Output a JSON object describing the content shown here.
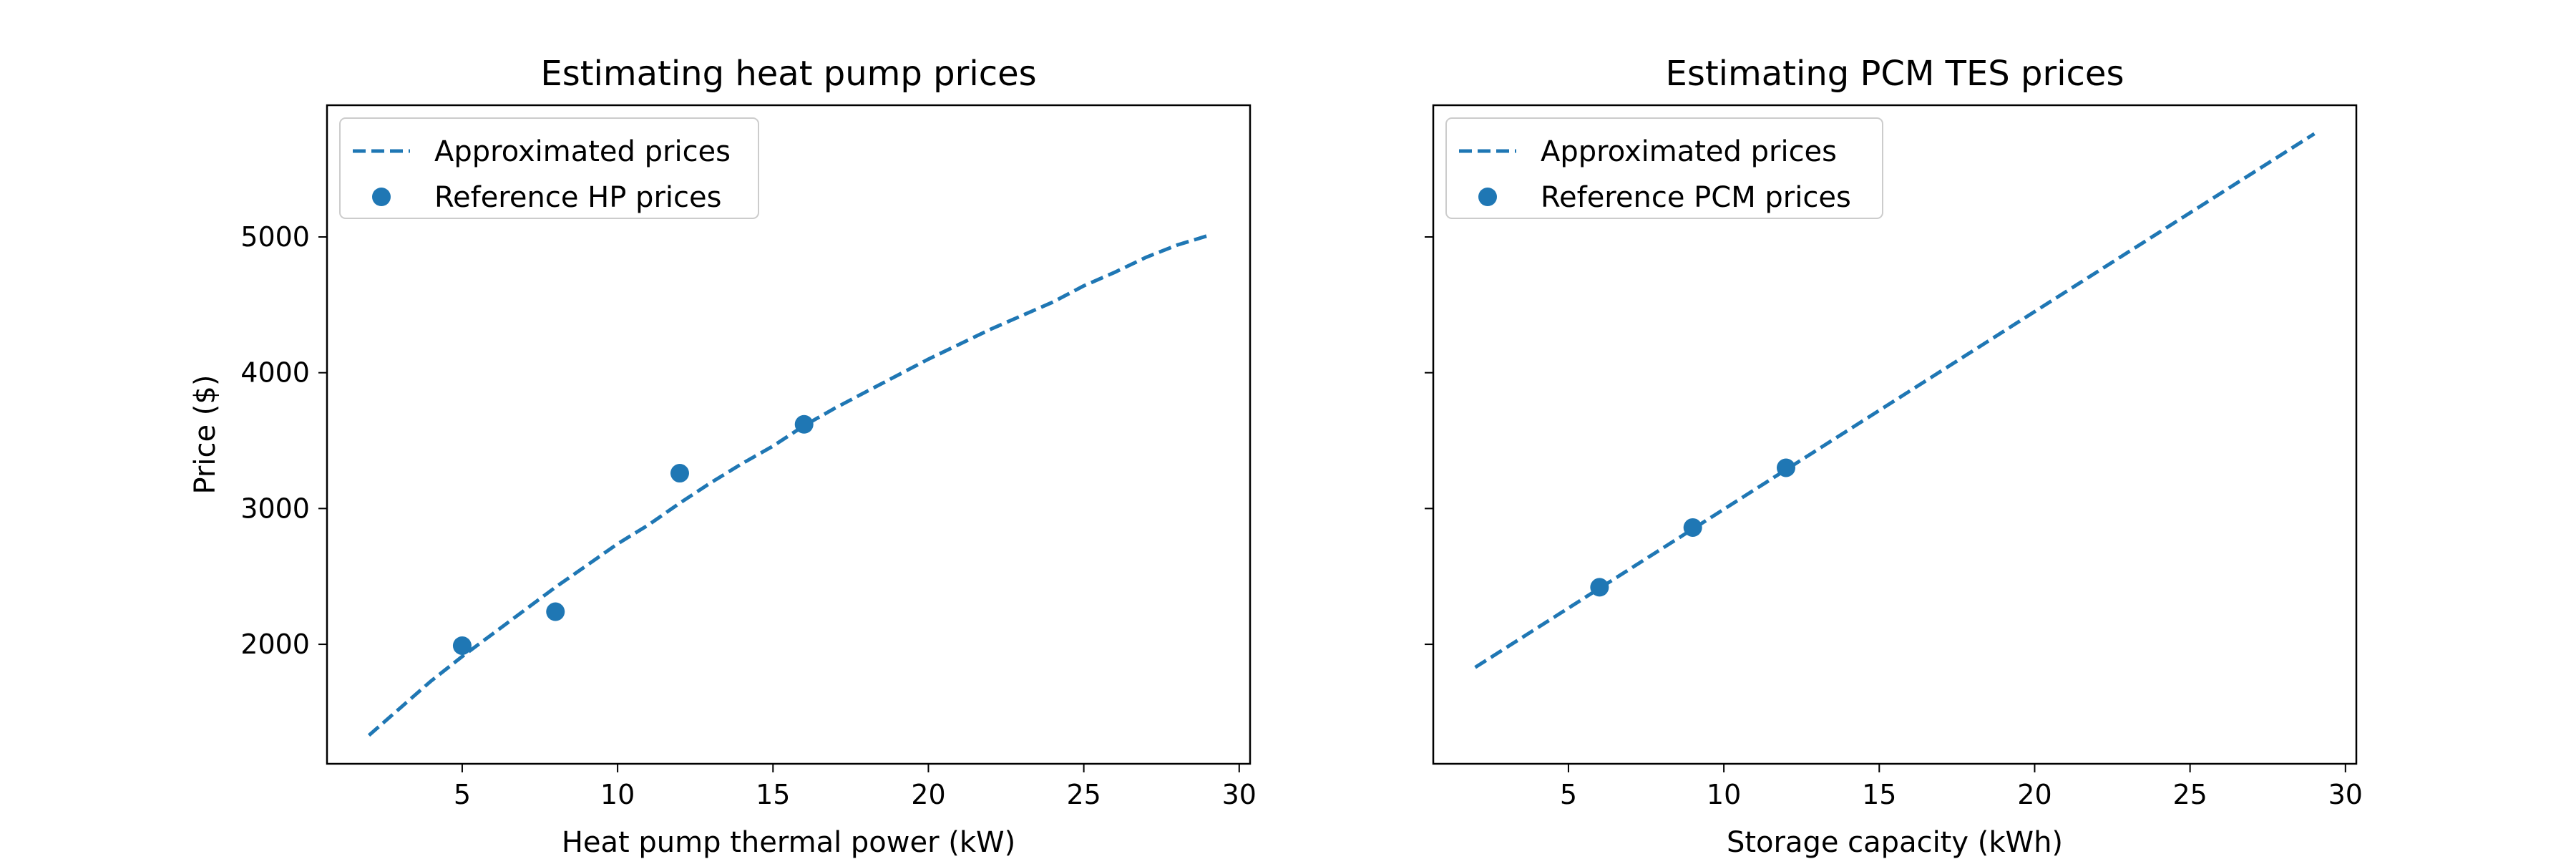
{
  "chart_data": [
    {
      "type": "line",
      "title": "Estimating heat pump prices",
      "xlabel": "Heat pump thermal power (kW)",
      "ylabel": "Price ($)",
      "xlim": [
        0.65,
        30.35
      ],
      "ylim": [
        1120,
        5970
      ],
      "xticks": [
        5,
        10,
        15,
        20,
        25,
        30
      ],
      "yticks": [
        2000,
        3000,
        4000,
        5000
      ],
      "grid": false,
      "legend": "upper left",
      "color": "#1f77b4",
      "series": [
        {
          "name": "Approximated prices",
          "style": "dashed-line",
          "x": [
            2,
            3,
            4,
            5,
            6,
            7,
            8,
            9,
            10,
            11,
            12,
            13,
            14,
            15,
            16,
            17,
            18,
            19,
            20,
            21,
            22,
            23,
            24,
            25,
            26,
            27,
            28,
            29
          ],
          "y": [
            1330,
            1530,
            1730,
            1910,
            2080,
            2250,
            2420,
            2580,
            2740,
            2880,
            3040,
            3190,
            3330,
            3460,
            3610,
            3740,
            3860,
            3980,
            4100,
            4210,
            4320,
            4420,
            4520,
            4640,
            4740,
            4850,
            4940,
            5010
          ]
        },
        {
          "name": "Reference HP prices",
          "style": "markers",
          "x": [
            5,
            8,
            12,
            16
          ],
          "y": [
            1990,
            2240,
            3260,
            3620
          ]
        }
      ]
    },
    {
      "type": "line",
      "title": "Estimating PCM TES prices",
      "xlabel": "Storage capacity (kWh)",
      "ylabel": "",
      "xlim": [
        0.65,
        30.35
      ],
      "ylim": [
        1120,
        5970
      ],
      "xticks": [
        5,
        10,
        15,
        20,
        25,
        30
      ],
      "yticks": [
        2000,
        3000,
        4000,
        5000
      ],
      "ytick_labels_shown": false,
      "grid": false,
      "legend": "upper left",
      "color": "#1f77b4",
      "series": [
        {
          "name": "Approximated prices",
          "style": "dashed-line",
          "x": [
            2,
            29
          ],
          "y": [
            1830,
            5760
          ]
        },
        {
          "name": "Reference PCM prices",
          "style": "markers",
          "x": [
            6,
            9,
            12
          ],
          "y": [
            2420,
            2860,
            3300
          ]
        }
      ]
    }
  ]
}
